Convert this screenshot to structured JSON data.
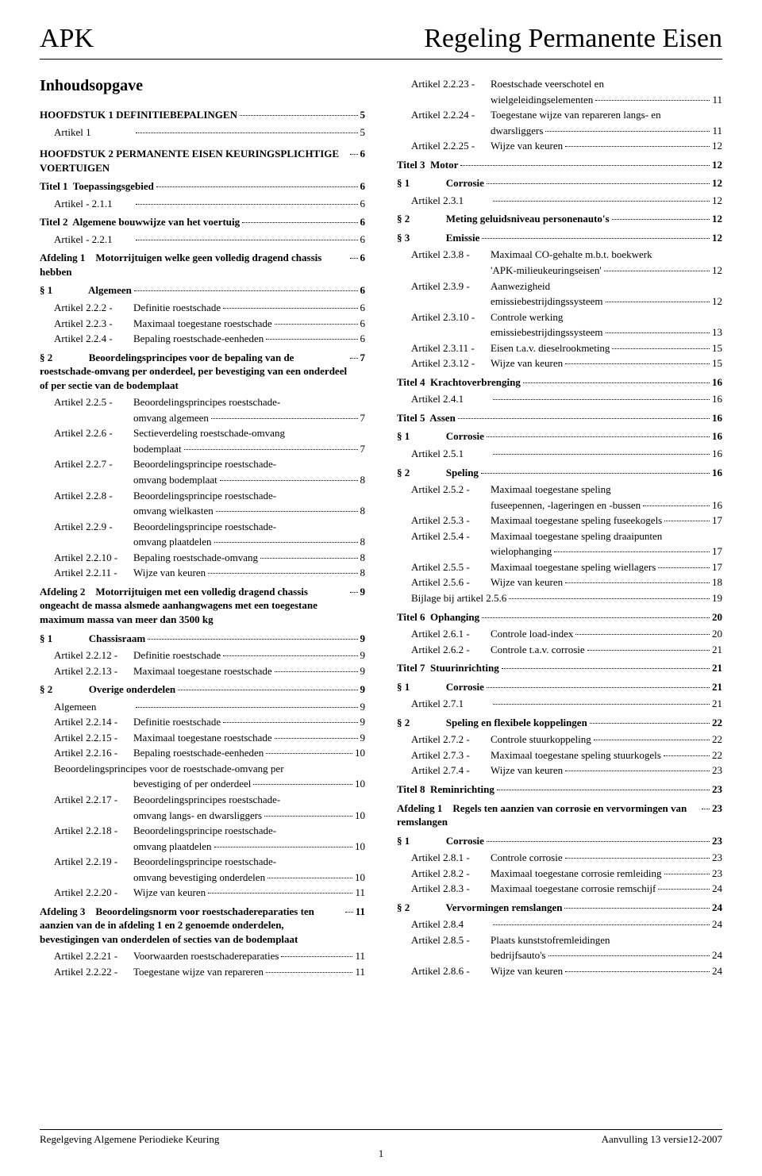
{
  "header": {
    "left": "APK",
    "right": "Regeling Permanente Eisen"
  },
  "heading": "Inhoudsopgave",
  "footer": {
    "left": "Regelgeving Algemene Periodieke Keuring",
    "right": "Aanvulling 13 versie12-2007",
    "page": "1"
  },
  "left": [
    {
      "type": "ch",
      "label": "HOOFDSTUK 1 DEFINITIEBEPALINGEN",
      "page": "5"
    },
    {
      "type": "art",
      "key": "Artikel 1",
      "desc": "",
      "page": "5"
    },
    {
      "type": "ch",
      "label": "HOOFDSTUK 2 PERMANENTE EISEN KEURINGSPLICHTIGE VOERTUIGEN",
      "page": "6"
    },
    {
      "type": "titel",
      "label": "Titel 1  Toepassingsgebied",
      "page": "6"
    },
    {
      "type": "art",
      "key": "Artikel  - 2.1.1",
      "desc": "",
      "page": "6"
    },
    {
      "type": "titel",
      "label": "Titel 2  Algemene bouwwijze van het voertuig",
      "page": "6"
    },
    {
      "type": "art",
      "key": "Artikel  - 2.2.1",
      "desc": "",
      "page": "6"
    },
    {
      "type": "afd",
      "label": "Afdeling 1    Motorrijtuigen welke geen volledig dragend chassis hebben",
      "page": "6"
    },
    {
      "type": "para",
      "label": "§ 1              Algemeen",
      "page": "6"
    },
    {
      "type": "art",
      "key": "Artikel 2.2.2  -",
      "desc": "Definitie roestschade",
      "page": "6"
    },
    {
      "type": "art",
      "key": "Artikel 2.2.3  -",
      "desc": "Maximaal toegestane roestschade",
      "page": "6"
    },
    {
      "type": "art",
      "key": "Artikel 2.2.4  -",
      "desc": "Bepaling roestschade-eenheden",
      "page": "6"
    },
    {
      "type": "para",
      "label": "§ 2              Beoordelingsprincipes voor de bepaling van de roestschade-omvang per onderdeel, per bevestiging van een onderdeel of per sectie van de bodemplaat",
      "page": "7"
    },
    {
      "type": "art",
      "key": "Artikel 2.2.5  -",
      "desc": "Beoordelingsprincipes roestschade-",
      "cont": "omvang algemeen",
      "page": "7"
    },
    {
      "type": "art",
      "key": "Artikel 2.2.6  -",
      "desc": "Sectieverdeling roestschade-omvang",
      "cont": "bodemplaat",
      "page": "7"
    },
    {
      "type": "art",
      "key": "Artikel 2.2.7  -",
      "desc": "Beoordelingsprincipe roestschade-",
      "cont": "omvang bodemplaat",
      "page": "8"
    },
    {
      "type": "art",
      "key": "Artikel 2.2.8  -",
      "desc": "Beoordelingsprincipe roestschade-",
      "cont": "omvang wielkasten",
      "page": "8"
    },
    {
      "type": "art",
      "key": "Artikel 2.2.9  -",
      "desc": "Beoordelingsprincipe roestschade-",
      "cont": "omvang plaatdelen",
      "page": "8"
    },
    {
      "type": "art",
      "key": "Artikel 2.2.10  -",
      "desc": "Bepaling roestschade-omvang",
      "page": "8"
    },
    {
      "type": "art",
      "key": "Artikel 2.2.11  -",
      "desc": "Wijze van keuren",
      "page": "8"
    },
    {
      "type": "afd",
      "label": "Afdeling 2    Motorrijtuigen met een volledig dragend chassis ongeacht de massa alsmede aanhangwagens met een toegestane maximum massa van meer dan 3500 kg",
      "page": "9"
    },
    {
      "type": "para",
      "label": "§ 1              Chassisraam",
      "page": "9"
    },
    {
      "type": "art",
      "key": "Artikel 2.2.12  -",
      "desc": "Definitie roestschade",
      "page": "9"
    },
    {
      "type": "art",
      "key": "Artikel 2.2.13  -",
      "desc": "Maximaal toegestane roestschade",
      "page": "9"
    },
    {
      "type": "para",
      "label": "§ 2              Overige onderdelen",
      "page": "9"
    },
    {
      "type": "art",
      "key": "Algemeen",
      "desc": "",
      "page": "9"
    },
    {
      "type": "art",
      "key": "Artikel 2.2.14  -",
      "desc": "Definitie roestschade",
      "page": "9"
    },
    {
      "type": "art",
      "key": "Artikel 2.2.15  -",
      "desc": "Maximaal toegestane roestschade",
      "page": "9"
    },
    {
      "type": "art",
      "key": "Artikel 2.2.16  -",
      "desc": "Bepaling roestschade-eenheden",
      "page": "10"
    },
    {
      "type": "plain",
      "indent": "indent-art",
      "label": "Beoordelingsprincipes voor de roestschade-omvang per"
    },
    {
      "type": "sub",
      "label": "bevestiging of per onderdeel",
      "page": "10"
    },
    {
      "type": "art",
      "key": "Artikel 2.2.17  -",
      "desc": "Beoordelingsprincipes roestschade-",
      "cont": "omvang langs- en dwarsliggers",
      "page": "10"
    },
    {
      "type": "art",
      "key": "Artikel 2.2.18  -",
      "desc": "Beoordelingsprincipe roestschade-",
      "cont": "omvang plaatdelen",
      "page": "10"
    },
    {
      "type": "art",
      "key": "Artikel 2.2.19  -",
      "desc": "Beoordelingsprincipe roestschade-",
      "cont": "omvang bevestiging onderdelen",
      "page": "10"
    },
    {
      "type": "art",
      "key": "Artikel 2.2.20  -",
      "desc": "Wijze van keuren",
      "page": "11"
    },
    {
      "type": "afd",
      "label": "Afdeling 3    Beoordelingsnorm voor roestschadereparaties ten aanzien van de in afdeling 1 en 2 genoemde onderdelen, bevestigingen van onderdelen of secties van de bodemplaat",
      "page": "11"
    },
    {
      "type": "art",
      "key": "Artikel 2.2.21  -",
      "desc": "Voorwaarden roestschadereparaties",
      "page": "11"
    },
    {
      "type": "art",
      "key": "Artikel 2.2.22  -",
      "desc": "Toegestane wijze van repareren",
      "page": "11"
    }
  ],
  "right": [
    {
      "type": "art",
      "key": "Artikel 2.2.23  -",
      "desc": "Roestschade veerschotel en",
      "cont": "wielgeleidingselementen",
      "page": "11"
    },
    {
      "type": "art",
      "key": "Artikel 2.2.24  -",
      "desc": "Toegestane wijze van repareren langs- en",
      "cont": "dwarsliggers",
      "page": "11"
    },
    {
      "type": "art",
      "key": "Artikel 2.2.25  -",
      "desc": "Wijze van keuren",
      "page": "12"
    },
    {
      "type": "titel",
      "label": "Titel 3  Motor",
      "page": "12"
    },
    {
      "type": "para",
      "label": "§ 1              Corrosie",
      "page": "12"
    },
    {
      "type": "art",
      "key": "Artikel 2.3.1",
      "desc": "",
      "page": "12"
    },
    {
      "type": "para",
      "label": "§ 2              Meting geluidsniveau personenauto's",
      "page": "12"
    },
    {
      "type": "para",
      "label": "§ 3              Emissie",
      "page": "12"
    },
    {
      "type": "art",
      "key": "Artikel 2.3.8  -",
      "desc": "Maximaal CO-gehalte m.b.t. boekwerk",
      "cont": "'APK-milieukeuringseisen'",
      "page": "12"
    },
    {
      "type": "art",
      "key": "Artikel 2.3.9  -",
      "desc": "Aanwezigheid",
      "cont": "emissiebestrijdingssysteem",
      "page": "12"
    },
    {
      "type": "art",
      "key": "Artikel 2.3.10  -",
      "desc": "Controle werking",
      "cont": "emissiebestrijdingssysteem",
      "page": "13"
    },
    {
      "type": "art",
      "key": "Artikel 2.3.11  -",
      "desc": "Eisen t.a.v. dieselrookmeting",
      "page": "15"
    },
    {
      "type": "art",
      "key": "Artikel 2.3.12  -",
      "desc": "Wijze van keuren",
      "page": "15"
    },
    {
      "type": "titel",
      "label": "Titel 4  Krachtoverbrenging",
      "page": "16"
    },
    {
      "type": "art",
      "key": "Artikel 2.4.1",
      "desc": "",
      "page": "16"
    },
    {
      "type": "titel",
      "label": "Titel 5  Assen",
      "page": "16"
    },
    {
      "type": "para",
      "label": "§ 1              Corrosie",
      "page": "16"
    },
    {
      "type": "art",
      "key": "Artikel 2.5.1",
      "desc": "",
      "page": "16"
    },
    {
      "type": "para",
      "label": "§ 2              Speling",
      "page": "16"
    },
    {
      "type": "art",
      "key": "Artikel 2.5.2  -",
      "desc": "Maximaal toegestane speling",
      "cont": "fuseepennen, -lageringen en -bussen",
      "page": "16"
    },
    {
      "type": "art",
      "key": "Artikel 2.5.3  -",
      "desc": "Maximaal toegestane speling fuseekogels",
      "page": "17"
    },
    {
      "type": "art",
      "key": "Artikel 2.5.4  -",
      "desc": "Maximaal toegestane speling draaipunten",
      "cont": "wielophanging",
      "page": "17"
    },
    {
      "type": "art",
      "key": "Artikel 2.5.5  -",
      "desc": "Maximaal toegestane speling wiellagers",
      "page": "17"
    },
    {
      "type": "art",
      "key": "Artikel 2.5.6  -",
      "desc": "Wijze van keuren",
      "page": "18"
    },
    {
      "type": "art",
      "key": "Bijlage bij artikel 2.5.6",
      "desc": "",
      "page": "19"
    },
    {
      "type": "titel",
      "label": "Titel 6  Ophanging",
      "page": "20"
    },
    {
      "type": "art",
      "key": "Artikel 2.6.1  -",
      "desc": "Controle load-index",
      "page": "20"
    },
    {
      "type": "art",
      "key": "Artikel 2.6.2  -",
      "desc": "Controle t.a.v. corrosie",
      "page": "21"
    },
    {
      "type": "titel",
      "label": "Titel 7  Stuurinrichting",
      "page": "21"
    },
    {
      "type": "para",
      "label": "§ 1              Corrosie",
      "page": "21"
    },
    {
      "type": "art",
      "key": "Artikel 2.7.1",
      "desc": "",
      "page": "21"
    },
    {
      "type": "para",
      "label": "§ 2              Speling en flexibele koppelingen",
      "page": "22"
    },
    {
      "type": "art",
      "key": "Artikel 2.7.2  -",
      "desc": "Controle stuurkoppeling",
      "page": "22"
    },
    {
      "type": "art",
      "key": "Artikel 2.7.3  -",
      "desc": "Maximaal toegestane speling stuurkogels",
      "page": "22"
    },
    {
      "type": "art",
      "key": "Artikel 2.7.4  -",
      "desc": "Wijze van keuren",
      "page": "23"
    },
    {
      "type": "titel",
      "label": "Titel 8  Reminrichting",
      "page": "23"
    },
    {
      "type": "afd",
      "label": "Afdeling 1    Regels ten aanzien van corrosie en vervormingen van remslangen",
      "page": "23"
    },
    {
      "type": "para",
      "label": "§ 1              Corrosie",
      "page": "23"
    },
    {
      "type": "art",
      "key": "Artikel 2.8.1  -",
      "desc": "Controle corrosie",
      "page": "23"
    },
    {
      "type": "art",
      "key": "Artikel 2.8.2  -",
      "desc": "Maximaal toegestane corrosie remleiding",
      "page": "23"
    },
    {
      "type": "art",
      "key": "Artikel 2.8.3  -",
      "desc": "Maximaal toegestane corrosie remschijf",
      "page": "24"
    },
    {
      "type": "para",
      "label": "§ 2              Vervormingen remslangen",
      "page": "24"
    },
    {
      "type": "art",
      "key": "Artikel 2.8.4",
      "desc": "",
      "page": "24"
    },
    {
      "type": "art",
      "key": "Artikel 2.8.5  -",
      "desc": "Plaats kunststofremleidingen",
      "cont": "bedrijfsauto's",
      "page": "24"
    },
    {
      "type": "art",
      "key": "Artikel 2.8.6  -",
      "desc": "Wijze van keuren",
      "page": "24"
    }
  ]
}
